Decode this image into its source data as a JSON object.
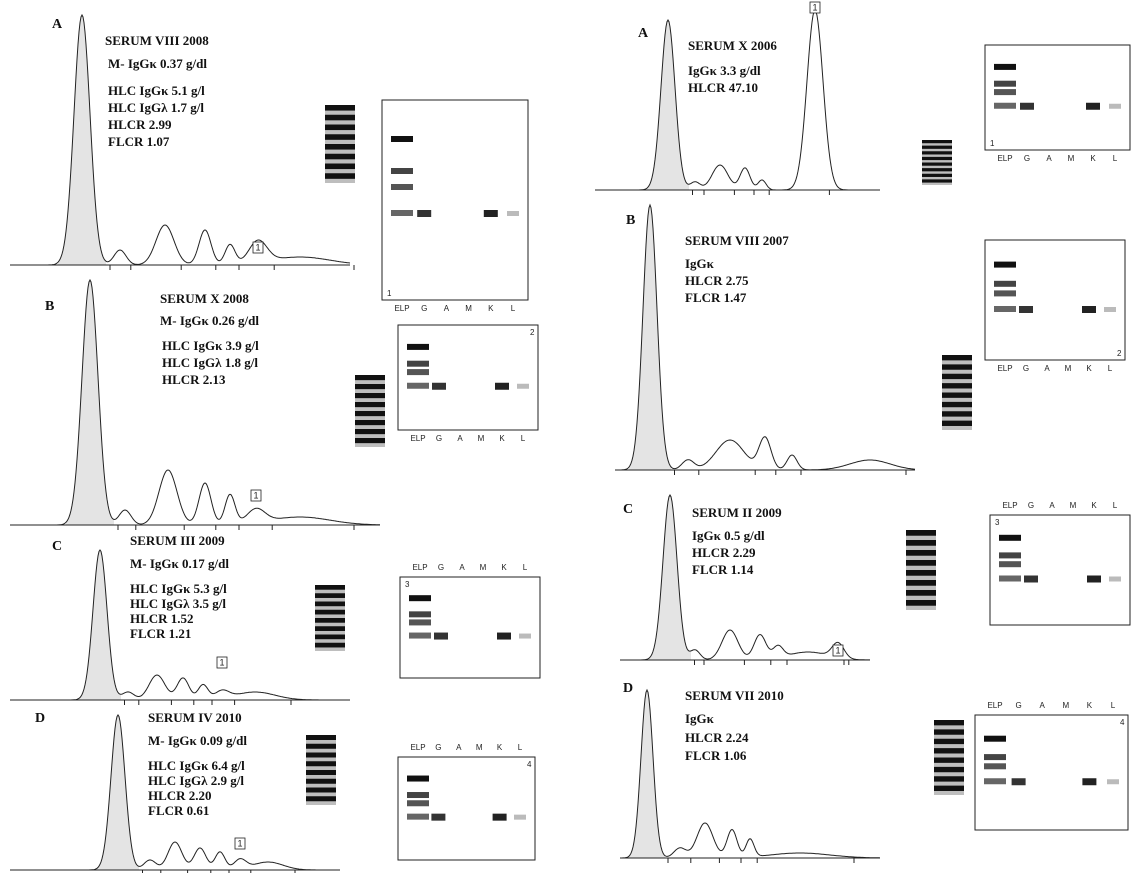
{
  "panels": [
    {
      "letter": "A",
      "title": "SERUM VIII 2008",
      "lines": [
        "M- IgGκ  0.37 g/dl",
        "HLC IgGκ  5.1 g/l",
        "HLC IgGλ  1.7 g/l",
        "HLCR  2.99",
        "FLCR  1.07"
      ],
      "gel_number": "1",
      "lanes": [
        "ELP",
        "G",
        "A",
        "M",
        "K",
        "L"
      ],
      "peak_marker": "1"
    },
    {
      "letter": "B",
      "title": "SERUM  X 2008",
      "lines": [
        "M- IgGκ  0.26 g/dl",
        "HLC IgGκ  3.9 g/l",
        "HLC IgGλ  1.8 g/l",
        "HLCR  2.13"
      ],
      "gel_number": "2",
      "lanes": [
        "ELP",
        "G",
        "A",
        "M",
        "K",
        "L"
      ],
      "peak_marker": "1"
    },
    {
      "letter": "C",
      "title": "SERUM  III 2009",
      "lines": [
        "M- IgGκ  0.17 g/dl",
        "HLC IgGκ  5.3 g/l",
        "HLC IgGλ  3.5 g/l",
        "HLCR  1.52",
        "FLCR  1.21"
      ],
      "gel_number": "3",
      "lanes": [
        "ELP",
        "G",
        "A",
        "M",
        "K",
        "L"
      ],
      "peak_marker": "1"
    },
    {
      "letter": "D",
      "title": "SERUM  IV  2010",
      "lines": [
        "M- IgGκ  0.09 g/dl",
        "HLC IgGκ  6.4 g/l",
        "HLC IgGλ  2.9 g/l",
        "HLCR  2.20",
        "FLCR  0.61"
      ],
      "gel_number": "4",
      "lanes": [
        "ELP",
        "G",
        "A",
        "M",
        "K",
        "L"
      ],
      "peak_marker": "1"
    },
    {
      "letter": "A",
      "title": "SERUM X 2006",
      "lines": [
        "IgGκ  3.3 g/dl",
        "HLCR  47.10"
      ],
      "gel_number": "1",
      "lanes": [
        "ELP",
        "G",
        "A",
        "M",
        "K",
        "L"
      ],
      "peak_marker": "1"
    },
    {
      "letter": "B",
      "title": "SERUM VIII 2007",
      "lines": [
        "IgGκ",
        "HLCR  2.75",
        "FLCR  1.47"
      ],
      "gel_number": "2",
      "lanes": [
        "ELP",
        "G",
        "A",
        "M",
        "K",
        "L"
      ]
    },
    {
      "letter": "C",
      "title": "SERUM  II 2009",
      "lines": [
        "IgGκ  0.5 g/dl",
        "HLCR  2.29",
        "FLCR  1.14"
      ],
      "gel_number": "3",
      "lanes": [
        "ELP",
        "G",
        "A",
        "M",
        "K",
        "L"
      ],
      "peak_marker": "1"
    },
    {
      "letter": "D",
      "title": "SERUM  VII 2010",
      "lines": [
        "IgGκ",
        "HLCR  2.24",
        "FLCR  1.06"
      ],
      "gel_number": "4",
      "lanes": [
        "ELP",
        "G",
        "A",
        "M",
        "K",
        "L"
      ]
    }
  ]
}
